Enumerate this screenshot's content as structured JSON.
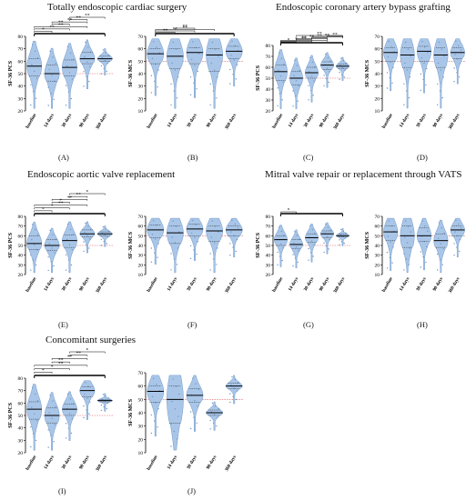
{
  "titles": {
    "t1": "Totally endoscopic cardiac surgery",
    "t2": "Endoscopic coronary artery bypass grafting",
    "t3": "Endoscopic aortic valve replacement",
    "t4": "Mitral valve repair or replacement through VATS",
    "t5": "Concomitant surgeries"
  },
  "chart_data": [
    {
      "id": "A",
      "type": "violin",
      "ylabel": "SF-36 PCS",
      "ylim": [
        20,
        80
      ],
      "yticks": [
        20,
        30,
        40,
        50,
        60,
        70,
        80
      ],
      "reference": 50,
      "categories": [
        "baseline",
        "14 days",
        "30 days",
        "90 days",
        "360 days"
      ],
      "medians": [
        56,
        50,
        55,
        62,
        62
      ],
      "q1": [
        48,
        44,
        48,
        58,
        60
      ],
      "q3": [
        62,
        57,
        61,
        67,
        64
      ],
      "significance": [
        "*",
        "**",
        "**",
        "**",
        "**",
        "**",
        "**"
      ]
    },
    {
      "id": "B",
      "type": "violin",
      "ylabel": "SF-36 MCS",
      "ylim": [
        10,
        70
      ],
      "yticks": [
        10,
        20,
        30,
        40,
        50,
        60,
        70
      ],
      "reference": 50,
      "categories": [
        "baseline",
        "14 days",
        "30 days",
        "90 days",
        "360 days"
      ],
      "medians": [
        56,
        54,
        57,
        55,
        58
      ],
      "q1": [
        48,
        44,
        48,
        42,
        52
      ],
      "q3": [
        60,
        60,
        61,
        60,
        62
      ],
      "significance": [
        "**",
        "**",
        "**",
        "**"
      ]
    },
    {
      "id": "C",
      "type": "violin",
      "ylabel": "SF-36 PCS",
      "ylim": [
        20,
        80
      ],
      "yticks": [
        20,
        30,
        40,
        50,
        60,
        70,
        80
      ],
      "reference": 50,
      "categories": [
        "baseline",
        "14 days",
        "30 days",
        "90 days",
        "360 days"
      ],
      "medians": [
        56,
        50,
        55,
        62,
        61
      ],
      "q1": [
        48,
        44,
        50,
        58,
        59
      ],
      "q3": [
        62,
        56,
        60,
        65,
        63
      ],
      "significance": [
        "*",
        "*",
        "**",
        "**",
        "**",
        "**",
        "**",
        "**",
        "**"
      ]
    },
    {
      "id": "D",
      "type": "violin",
      "ylabel": "SF-36 MCS",
      "ylim": [
        10,
        70
      ],
      "yticks": [
        10,
        20,
        30,
        40,
        50,
        60,
        70
      ],
      "reference": 50,
      "categories": [
        "baseline",
        "14 days",
        "30 days",
        "90 days",
        "360 days"
      ],
      "medians": [
        57,
        55,
        58,
        55,
        57
      ],
      "q1": [
        50,
        45,
        50,
        45,
        52
      ],
      "q3": [
        61,
        61,
        62,
        61,
        61
      ],
      "significance": []
    },
    {
      "id": "E",
      "type": "violin",
      "ylabel": "SF-36 PCS",
      "ylim": [
        20,
        80
      ],
      "yticks": [
        20,
        30,
        40,
        50,
        60,
        70,
        80
      ],
      "reference": 50,
      "categories": [
        "baseline",
        "14 days",
        "30 days",
        "90 days",
        "360 days"
      ],
      "medians": [
        52,
        50,
        55,
        62,
        62
      ],
      "q1": [
        46,
        45,
        48,
        59,
        60
      ],
      "q3": [
        60,
        56,
        61,
        66,
        64
      ],
      "significance": [
        "*",
        "*",
        "**",
        "*",
        "**",
        "**",
        "*"
      ]
    },
    {
      "id": "F",
      "type": "violin",
      "ylabel": "SF-36 MCS",
      "ylim": [
        10,
        70
      ],
      "yticks": [
        10,
        20,
        30,
        40,
        50,
        60,
        70
      ],
      "reference": 50,
      "categories": [
        "baseline",
        "14 days",
        "30 days",
        "90 days",
        "360 days"
      ],
      "medians": [
        56,
        53,
        57,
        55,
        56
      ],
      "q1": [
        48,
        42,
        50,
        44,
        50
      ],
      "q3": [
        61,
        60,
        62,
        60,
        60
      ],
      "significance": []
    },
    {
      "id": "G",
      "type": "violin",
      "ylabel": "SF-36 PCS",
      "ylim": [
        20,
        80
      ],
      "yticks": [
        20,
        30,
        40,
        50,
        60,
        70,
        80
      ],
      "reference": 50,
      "categories": [
        "baseline",
        "14 days",
        "30 days",
        "90 days",
        "360 days"
      ],
      "medians": [
        56,
        51,
        58,
        62,
        60
      ],
      "q1": [
        50,
        47,
        53,
        58,
        59
      ],
      "q3": [
        60,
        56,
        62,
        65,
        62
      ],
      "significance": [
        "*"
      ]
    },
    {
      "id": "H",
      "type": "violin",
      "ylabel": "SF-36 MCS",
      "ylim": [
        10,
        70
      ],
      "yticks": [
        10,
        20,
        30,
        40,
        50,
        60,
        70
      ],
      "reference": 50,
      "categories": [
        "baseline",
        "14 days",
        "30 days",
        "90 days",
        "360 days"
      ],
      "medians": [
        54,
        50,
        50,
        45,
        56
      ],
      "q1": [
        45,
        38,
        44,
        38,
        50
      ],
      "q3": [
        60,
        60,
        58,
        52,
        60
      ],
      "significance": []
    },
    {
      "id": "I",
      "type": "violin",
      "ylabel": "SF-36 PCS",
      "ylim": [
        20,
        80
      ],
      "yticks": [
        20,
        30,
        40,
        50,
        60,
        70,
        80
      ],
      "reference": 50,
      "categories": [
        "baseline",
        "14 days",
        "30 days",
        "90 days",
        "360 days"
      ],
      "medians": [
        55,
        50,
        55,
        70,
        62
      ],
      "q1": [
        47,
        44,
        50,
        65,
        61
      ],
      "q3": [
        61,
        56,
        59,
        73,
        63
      ],
      "significance": [
        "*",
        "*",
        "**",
        "**",
        "**",
        "**",
        "*"
      ]
    },
    {
      "id": "J",
      "type": "violin",
      "ylabel": "SF-36 MCS",
      "ylim": [
        10,
        70
      ],
      "yticks": [
        10,
        20,
        30,
        40,
        50,
        60,
        70
      ],
      "reference": 50,
      "categories": [
        "baseline",
        "14 days",
        "30 days",
        "90 days",
        "360 days"
      ],
      "medians": [
        56,
        50,
        53,
        40,
        60
      ],
      "q1": [
        48,
        32,
        48,
        38,
        58
      ],
      "q3": [
        60,
        60,
        58,
        42,
        62
      ],
      "significance": []
    }
  ],
  "labels": {
    "A": "(A)",
    "B": "(B)",
    "C": "(C)",
    "D": "(D)",
    "E": "(E)",
    "F": "(F)",
    "G": "(G)",
    "H": "(H)",
    "I": "(I)",
    "J": "(J)"
  },
  "colors": {
    "violin_fill": "#a9c6e8",
    "violin_edge": "#6f97c9",
    "median": "#000000",
    "reference": "#e05555",
    "axis": "#000000"
  }
}
